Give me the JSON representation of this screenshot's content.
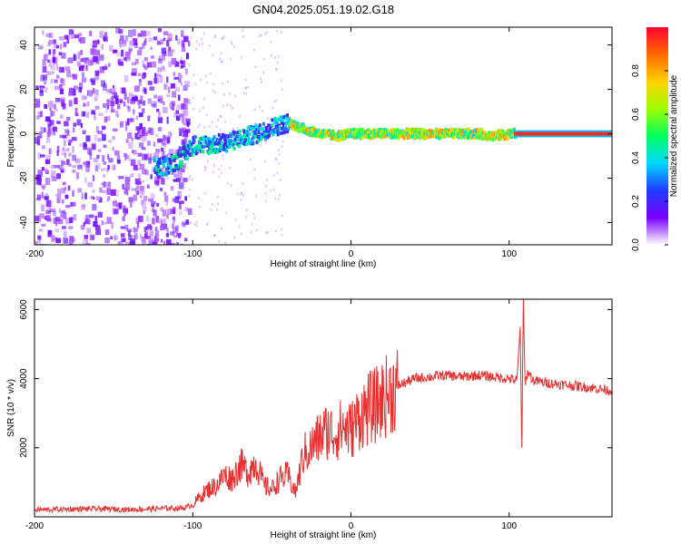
{
  "title": "GN04.2025.051.19.02.G18",
  "chart_data": [
    {
      "type": "heatmap",
      "xlabel": "Height of straight line (km)",
      "ylabel": "Frequency (Hz)",
      "xlim": [
        -200,
        165
      ],
      "ylim": [
        -50,
        48
      ],
      "xticks": [
        -200,
        -100,
        0,
        100
      ],
      "yticks": [
        -40,
        -20,
        0,
        20,
        40
      ],
      "grid": false,
      "colorbar": {
        "label": "Normalized spectral amplitude",
        "range": [
          0.0,
          1.0
        ],
        "ticks": [
          "0.0",
          "0.2",
          "0.4",
          "0.6",
          "0.8"
        ],
        "colormap": [
          "#ffffff",
          "#7a00ff",
          "#1e3cff",
          "#00d8ff",
          "#00ff60",
          "#9cff00",
          "#ffd000",
          "#ff6a00",
          "#ff0030"
        ]
      },
      "regions": [
        {
          "x_range": [
            -200,
            -103
          ],
          "description_level": 0.15
        },
        {
          "x_range": [
            -103,
            103
          ],
          "description_level": 0.6
        },
        {
          "x_range": [
            103,
            165
          ],
          "description_level": 0.95
        }
      ],
      "ridge": {
        "x": [
          -120,
          -110,
          -100,
          -90,
          -80,
          -70,
          -60,
          -50,
          -40,
          -30,
          -20,
          -10,
          0,
          20,
          40,
          60,
          80,
          90,
          100,
          110,
          130,
          150,
          165
        ],
        "y": [
          -15,
          -12,
          -5,
          -5,
          -4,
          -2,
          0,
          3,
          5,
          2,
          0,
          -1,
          0,
          0,
          0,
          0,
          0,
          -1,
          0,
          0,
          0,
          0,
          0
        ]
      }
    },
    {
      "type": "line",
      "xlabel": "Height of straight line (km)",
      "ylabel": "SNR (10 * v/v)",
      "xlim": [
        -200,
        165
      ],
      "ylim": [
        0,
        6300
      ],
      "xticks": [
        -200,
        -100,
        0,
        100
      ],
      "yticks": [
        2000,
        4000,
        6000
      ],
      "grid": false,
      "color": "#e83030",
      "series": [
        {
          "x": [
            -200,
            -180,
            -160,
            -140,
            -120,
            -105,
            -100,
            -95,
            -90,
            -85,
            -80,
            -75,
            -70,
            -65,
            -60,
            -55,
            -50,
            -45,
            -40,
            -35,
            -30,
            -25,
            -20,
            -15,
            -10,
            -5,
            0,
            5,
            10,
            15,
            20,
            25,
            30,
            35,
            40,
            50,
            60,
            70,
            80,
            90,
            100,
            105,
            107,
            108,
            109,
            110,
            112,
            115,
            120,
            130,
            140,
            150,
            165
          ],
          "y": [
            200,
            220,
            230,
            210,
            240,
            260,
            350,
            600,
            800,
            900,
            1200,
            1100,
            1500,
            1300,
            1600,
            900,
            800,
            1100,
            1200,
            700,
            1800,
            2000,
            2300,
            2500,
            2400,
            2600,
            2500,
            2900,
            3100,
            3200,
            3400,
            3600,
            3800,
            3900,
            4000,
            4050,
            4100,
            4050,
            4100,
            4050,
            4000,
            3950,
            5500,
            2000,
            6300,
            3900,
            4200,
            3950,
            3900,
            3850,
            3800,
            3750,
            3650
          ]
        }
      ]
    }
  ]
}
